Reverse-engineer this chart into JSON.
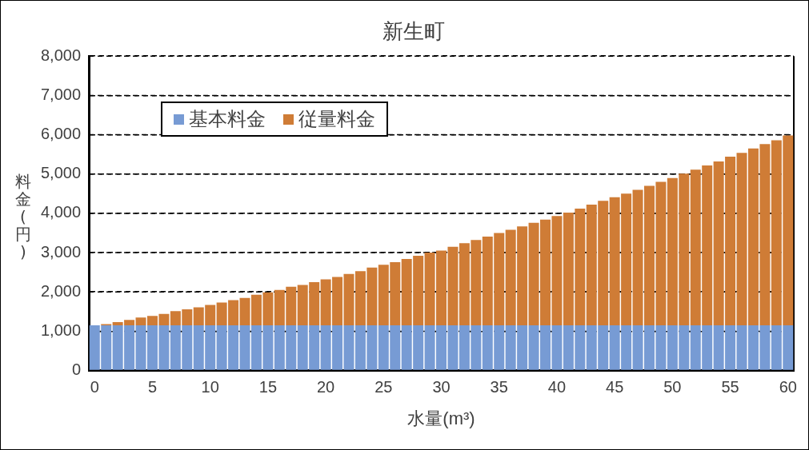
{
  "chart_data": {
    "type": "bar",
    "stacked": true,
    "title": "新生町",
    "xlabel": "水量(m³)",
    "ylabel": "料金(円)",
    "categories": [
      "0",
      null,
      null,
      null,
      null,
      "5",
      null,
      null,
      null,
      null,
      "10",
      null,
      null,
      null,
      null,
      "15",
      null,
      null,
      null,
      null,
      "20",
      null,
      null,
      null,
      null,
      "25",
      null,
      null,
      null,
      null,
      "30",
      null,
      null,
      null,
      null,
      "35",
      null,
      null,
      null,
      null,
      "40",
      null,
      null,
      null,
      null,
      "45",
      null,
      null,
      null,
      null,
      "50",
      null,
      null,
      null,
      null,
      "55",
      null,
      null,
      null,
      null,
      "60"
    ],
    "series": [
      {
        "name": "基本料金",
        "color": "#779bd4",
        "values": [
          1150,
          1150,
          1150,
          1150,
          1150,
          1150,
          1150,
          1150,
          1150,
          1150,
          1150,
          1150,
          1150,
          1150,
          1150,
          1150,
          1150,
          1150,
          1150,
          1150,
          1150,
          1150,
          1150,
          1150,
          1150,
          1150,
          1150,
          1150,
          1150,
          1150,
          1150,
          1150,
          1150,
          1150,
          1150,
          1150,
          1150,
          1150,
          1150,
          1150,
          1150,
          1150,
          1150,
          1150,
          1150,
          1150,
          1150,
          1150,
          1150,
          1150,
          1150,
          1150,
          1150,
          1150,
          1150,
          1150,
          1150,
          1150,
          1150,
          1150,
          1150
        ]
      },
      {
        "name": "従量料金",
        "color": "#cf7c36",
        "values": [
          0,
          30,
          80,
          140,
          200,
          240,
          290,
          360,
          410,
          460,
          520,
          580,
          640,
          700,
          780,
          840,
          900,
          980,
          1030,
          1100,
          1170,
          1230,
          1310,
          1380,
          1470,
          1540,
          1610,
          1690,
          1770,
          1850,
          1900,
          2000,
          2090,
          2170,
          2260,
          2350,
          2430,
          2520,
          2610,
          2690,
          2780,
          2870,
          2970,
          3070,
          3170,
          3260,
          3350,
          3450,
          3550,
          3650,
          3750,
          3860,
          3960,
          4070,
          4170,
          4290,
          4390,
          4500,
          4610,
          4710,
          4830
        ]
      }
    ],
    "ylim": [
      0,
      8000
    ],
    "yticks": [
      {
        "value": 0,
        "label": "0"
      },
      {
        "value": 1000,
        "label": "1,000"
      },
      {
        "value": 2000,
        "label": "2,000"
      },
      {
        "value": 3000,
        "label": "3,000"
      },
      {
        "value": 4000,
        "label": "4,000"
      },
      {
        "value": 5000,
        "label": "5,000"
      },
      {
        "value": 6000,
        "label": "6,000"
      },
      {
        "value": 7000,
        "label": "7,000"
      },
      {
        "value": 8000,
        "label": "8,000"
      }
    ],
    "grid": "y",
    "legend": "top left"
  }
}
